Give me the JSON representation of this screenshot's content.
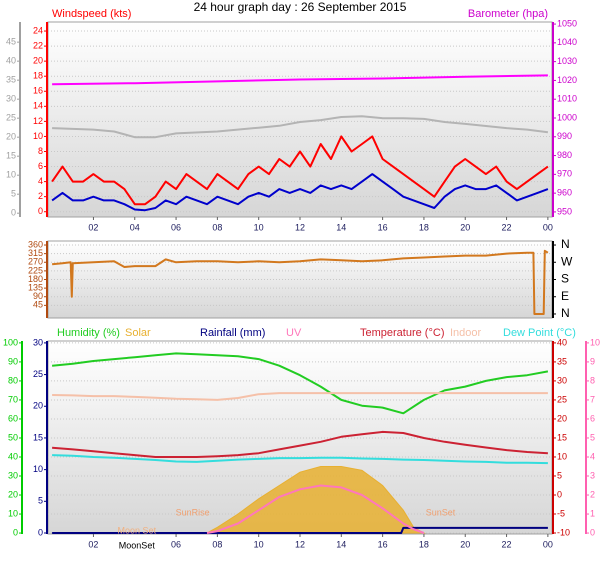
{
  "chart_data": [
    {
      "type": "line",
      "title": "24 hour graph day : 26 September 2015",
      "ylabel": "Windspeed (kts)",
      "y2label": "Barometer (hpa)",
      "xlim": [
        -0.2,
        24.2
      ],
      "xticks": [
        {
          "value": 2,
          "label": "02"
        },
        {
          "value": 4,
          "label": "04"
        },
        {
          "value": 6,
          "label": "06"
        },
        {
          "value": 8,
          "label": "08"
        },
        10,
        12,
        14,
        16,
        18,
        20,
        22,
        {
          "value": 24,
          "label": "00"
        }
      ],
      "ylim": [
        -0.7,
        25.2
      ],
      "yticks": [
        0,
        2,
        4,
        6,
        8,
        10,
        12,
        14,
        16,
        18,
        20,
        22,
        24
      ],
      "ycolor": "#ff0000",
      "y2lim": [
        947.3,
        1051.1
      ],
      "y2ticks": [
        950,
        960,
        970,
        980,
        990,
        1000,
        1010,
        1020,
        1030,
        1040,
        1050
      ],
      "y2color": "#cc00cc",
      "y3lim": [
        -1,
        50.3
      ],
      "y3ticks": [
        0,
        5,
        10,
        15,
        20,
        25,
        30,
        35,
        40,
        45
      ],
      "y3color": "#a0a0a0",
      "grid": true,
      "x": [
        0,
        0.5,
        1,
        1.5,
        2,
        2.5,
        3,
        3.5,
        4,
        4.5,
        5,
        5.5,
        6,
        6.5,
        7,
        7.5,
        8,
        8.5,
        9,
        9.5,
        10,
        10.5,
        11,
        11.5,
        12,
        12.5,
        13,
        13.5,
        14,
        14.5,
        15,
        15.5,
        16,
        16.5,
        17,
        17.5,
        18,
        18.5,
        19,
        19.5,
        20,
        20.5,
        21,
        21.5,
        22,
        22.5,
        23,
        23.5,
        24
      ],
      "series": [
        {
          "color": "#ff00ff",
          "axis": "y2",
          "x": [
            0,
            4,
            8,
            12,
            16,
            20,
            24
          ],
          "values": [
            1018,
            1018.5,
            1019.5,
            1020.5,
            1021,
            1022,
            1022.7
          ]
        },
        {
          "color": "#b4b4b4",
          "axis": "y3",
          "x": [
            0,
            2,
            3,
            4,
            5,
            6,
            8,
            10,
            11,
            12,
            13,
            14,
            15,
            16,
            17,
            18,
            19,
            20,
            22,
            23,
            24
          ],
          "values": [
            22.4,
            22,
            21.5,
            20,
            20,
            21,
            21.5,
            22.5,
            23,
            24,
            24.5,
            25.3,
            25.5,
            25,
            25,
            24.8,
            24,
            23.5,
            22.4,
            22,
            21.3
          ]
        },
        {
          "color": "#ff0000",
          "axis": "y",
          "values": [
            4,
            6,
            4,
            4,
            5,
            4,
            4,
            3,
            1,
            1,
            2,
            4,
            3,
            5,
            4,
            3,
            5,
            4,
            3,
            5,
            6,
            5,
            7,
            6,
            8,
            6,
            9,
            7,
            10,
            8,
            9,
            10,
            7,
            6,
            5,
            4,
            3,
            2,
            4,
            6,
            7,
            6,
            5,
            6,
            4,
            3,
            4,
            5,
            6
          ]
        },
        {
          "color": "#0000cc",
          "axis": "y",
          "values": [
            1.5,
            2.5,
            1.5,
            1.5,
            2,
            1.5,
            1.5,
            1,
            0.3,
            0.2,
            0.5,
            1.5,
            1,
            2,
            1.5,
            1,
            2,
            1.5,
            1,
            2,
            2.5,
            2,
            3,
            2.5,
            3,
            2.5,
            3.5,
            3,
            3.5,
            3,
            4,
            5,
            4,
            3,
            2,
            1.5,
            1,
            0.5,
            2,
            3,
            3.5,
            3,
            3,
            3.5,
            2.5,
            1.5,
            2,
            2.5,
            3
          ]
        }
      ]
    },
    {
      "type": "line",
      "xlim": [
        -0.2,
        24.2
      ],
      "ylim": [
        -21,
        381
      ],
      "yticks": [
        45,
        90,
        135,
        180,
        225,
        270,
        315,
        360
      ],
      "ycolor": "#b04a10",
      "y2lim": [
        -21,
        381
      ],
      "y2ticks": [
        {
          "value": 360,
          "label": "N"
        },
        {
          "value": 270,
          "label": "W"
        },
        {
          "value": 180,
          "label": "S"
        },
        {
          "value": 90,
          "label": "E"
        },
        {
          "value": 0,
          "label": "N"
        }
      ],
      "y2color": "#000000",
      "grid": true,
      "series": [
        {
          "color": "#d2781e",
          "axis": "y",
          "x": [
            0,
            0.5,
            0.9,
            0.95,
            1.0,
            2,
            3,
            3.5,
            4,
            5,
            5.5,
            6,
            7,
            8,
            9,
            10,
            11,
            12,
            13,
            14,
            15,
            16,
            17,
            18,
            19,
            20,
            21,
            22,
            23,
            23.3,
            23.35,
            23.8,
            23.85,
            24
          ],
          "values": [
            260,
            265,
            270,
            90,
            265,
            270,
            275,
            245,
            250,
            250,
            285,
            270,
            275,
            275,
            270,
            275,
            270,
            275,
            285,
            280,
            275,
            280,
            290,
            295,
            300,
            305,
            305,
            315,
            320,
            320,
            0,
            0,
            330,
            320
          ]
        }
      ]
    },
    {
      "type": "line",
      "xlim": [
        -0.2,
        24.2
      ],
      "xticks": [
        {
          "value": 2,
          "label": "02"
        },
        {
          "value": 6,
          "label": "06"
        },
        {
          "value": 8,
          "label": "08"
        },
        10,
        12,
        14,
        16,
        18,
        20,
        22,
        {
          "value": 24,
          "label": "00"
        }
      ],
      "ylim": [
        -0.5,
        101
      ],
      "yticks": [
        0,
        10,
        20,
        30,
        40,
        50,
        60,
        70,
        80,
        90,
        100
      ],
      "ycolor": "#00cc00",
      "y2lim": [
        -10.26,
        40.5
      ],
      "y2ticks": [
        -10,
        -5,
        0,
        5,
        10,
        15,
        20,
        25,
        30,
        35,
        40
      ],
      "y2color": "#cc0000",
      "y3lim": [
        -0.16,
        30.3
      ],
      "y3ticks": [
        0,
        5,
        10,
        15,
        20,
        25,
        30
      ],
      "y3color": "#000080",
      "y4lim": [
        -0.05,
        10.1
      ],
      "y4ticks": [
        0,
        1,
        2,
        3,
        4,
        5,
        6,
        7,
        8,
        9,
        10
      ],
      "y4color": "#ff60b0",
      "grid": true,
      "x": [
        0,
        1,
        2,
        3,
        4,
        5,
        6,
        7,
        8,
        9,
        10,
        11,
        12,
        13,
        14,
        15,
        16,
        17,
        18,
        19,
        20,
        21,
        22,
        23,
        24
      ],
      "series": [
        {
          "name": "Humidity (%)",
          "color": "#22cc22",
          "axis": "y",
          "values": [
            88,
            89,
            90.5,
            91.5,
            92.5,
            93.5,
            94.5,
            94,
            93.5,
            93,
            91.5,
            88,
            83,
            77,
            70,
            67,
            66,
            63,
            70,
            75,
            77,
            80,
            82,
            83,
            85
          ]
        },
        {
          "name": "Solar",
          "color": "#e8b030",
          "axis": "y",
          "fill": true,
          "x": [
            7.5,
            8,
            9,
            10,
            11,
            12,
            13,
            14,
            15,
            16,
            17,
            17.5,
            18
          ],
          "values": [
            0,
            3,
            10,
            18,
            25,
            32,
            35,
            35,
            33,
            25,
            12,
            3,
            0
          ]
        },
        {
          "name": "Rainfall (mm)",
          "color": "#000080",
          "axis": "y3",
          "x": [
            0,
            16.9,
            17,
            24
          ],
          "values": [
            0,
            0,
            0.8,
            0.8
          ]
        },
        {
          "name": "UV",
          "color": "#ff77bb",
          "axis": "y4",
          "x": [
            7.5,
            8,
            9,
            10,
            11,
            12,
            13,
            14,
            15,
            16,
            17,
            17.5,
            18
          ],
          "values": [
            0,
            0.1,
            0.5,
            1.2,
            1.9,
            2.3,
            2.5,
            2.4,
            2,
            1.3,
            0.5,
            0.2,
            0
          ]
        },
        {
          "name": "Temperature (°C)",
          "color": "#cc2233",
          "axis": "y2",
          "values": [
            12.4,
            12,
            11.5,
            11,
            10.5,
            10,
            10,
            10,
            10.2,
            10.5,
            11,
            12,
            13,
            14,
            15.3,
            16,
            16.6,
            16.3,
            15,
            14,
            13.2,
            12.5,
            11.8,
            11.3,
            11
          ]
        },
        {
          "name": "Indoor",
          "color": "#f5c0a8",
          "axis": "y2",
          "values": [
            26.3,
            26.2,
            26,
            26,
            25.8,
            25.6,
            25.3,
            25.2,
            25,
            25.5,
            26.5,
            26.8,
            26.8,
            26.8,
            26.8,
            26.8,
            26.8,
            26.8,
            26.8,
            26.8,
            26.8,
            26.8,
            26.8,
            26.8,
            26.8
          ]
        },
        {
          "name": "Dew Point (°C)",
          "color": "#33dddd",
          "axis": "y2",
          "values": [
            10.5,
            10.3,
            10,
            9.8,
            9.5,
            9.2,
            8.8,
            8.7,
            9,
            9.3,
            9.5,
            9.7,
            9.7,
            9.8,
            9.8,
            9.6,
            9.5,
            9.3,
            9.2,
            9,
            8.8,
            8.7,
            8.5,
            8.5,
            8.4
          ]
        }
      ],
      "annotations": [
        {
          "text": "SunRise",
          "x": 6.8
        },
        {
          "text": "SunSet",
          "x": 18.8
        },
        {
          "text": "Moon Set",
          "x": 4.1
        },
        {
          "text": "MoonSet",
          "x": 4.1
        }
      ]
    }
  ]
}
